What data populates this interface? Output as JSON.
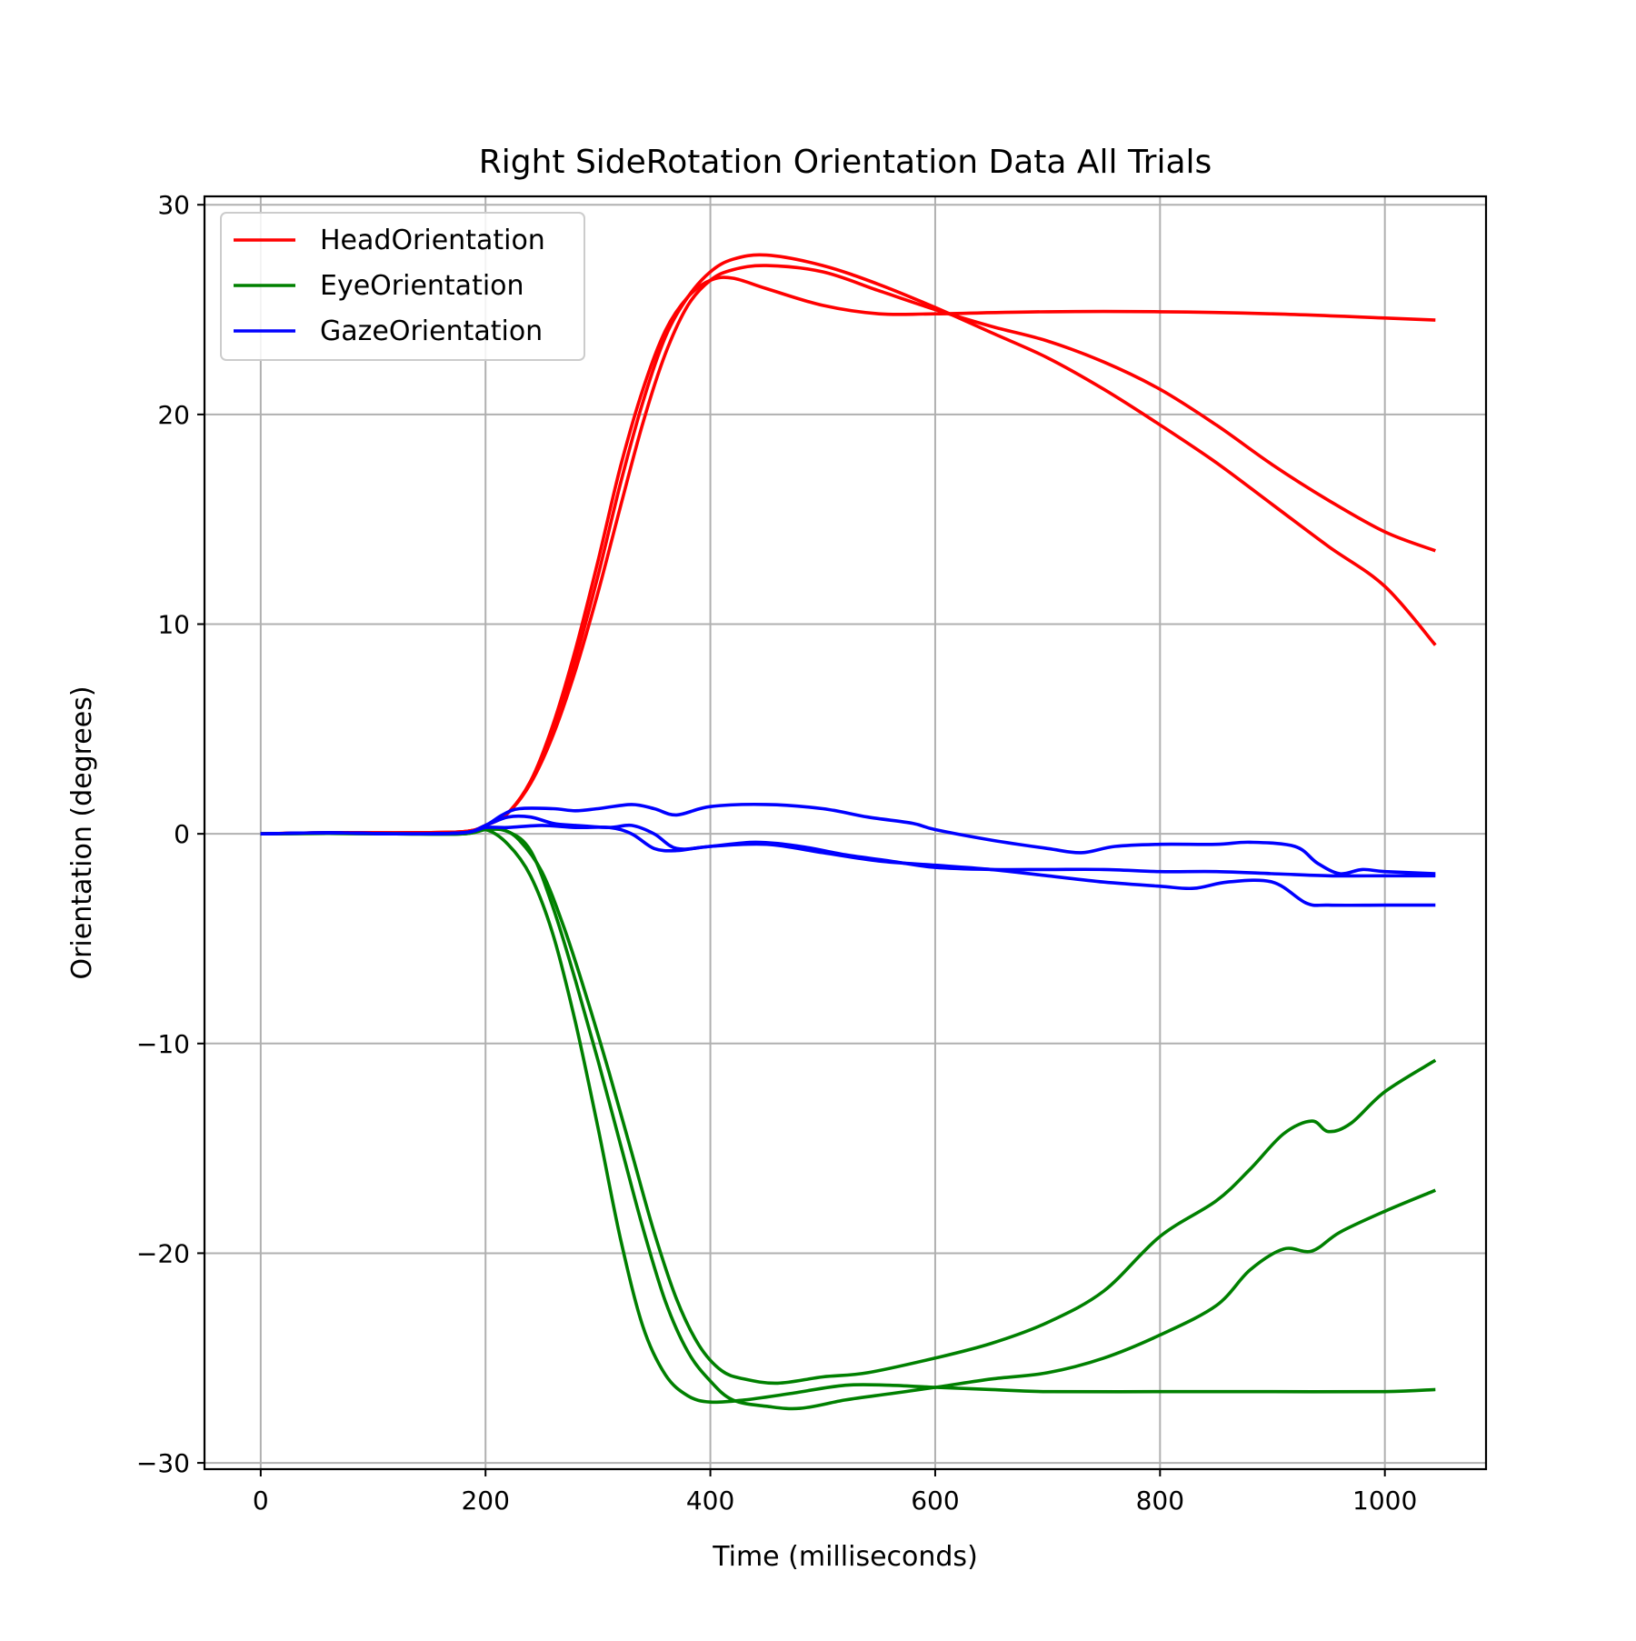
{
  "chart_data": {
    "type": "line",
    "title": "Right SideRotation Orientation Data All Trials",
    "xlabel": "Time (milliseconds)",
    "ylabel": "Orientation (degrees)",
    "xlim": [
      -50,
      1090
    ],
    "ylim": [
      -30.3,
      30.4
    ],
    "xticks": [
      0,
      200,
      400,
      600,
      800,
      1000
    ],
    "yticks": [
      30,
      20,
      10,
      0,
      -10,
      -20,
      -30
    ],
    "xtick_labels": [
      "0",
      "200",
      "400",
      "600",
      "800",
      "1000"
    ],
    "ytick_labels": [
      "30",
      "20",
      "10",
      "0",
      "−10",
      "−20",
      "−30"
    ],
    "grid": true,
    "legend_position": "top-left",
    "legend": [
      {
        "label": "HeadOrientation",
        "color": "#ff0000"
      },
      {
        "label": "EyeOrientation",
        "color": "#008000"
      },
      {
        "label": "GazeOrientation",
        "color": "#0000ff"
      }
    ],
    "series": [
      {
        "group": "HeadOrientation",
        "color": "#ff0000",
        "points": [
          [
            0,
            0
          ],
          [
            60,
            0.05
          ],
          [
            120,
            0.05
          ],
          [
            180,
            0.1
          ],
          [
            200,
            0.4
          ],
          [
            220,
            1.0
          ],
          [
            240,
            2.5
          ],
          [
            260,
            5.2
          ],
          [
            280,
            8.8
          ],
          [
            300,
            13.0
          ],
          [
            320,
            17.5
          ],
          [
            340,
            21.2
          ],
          [
            360,
            24.0
          ],
          [
            380,
            25.6
          ],
          [
            400,
            26.4
          ],
          [
            420,
            26.5
          ],
          [
            450,
            26.0
          ],
          [
            500,
            25.2
          ],
          [
            550,
            24.8
          ],
          [
            600,
            24.8
          ],
          [
            700,
            24.9
          ],
          [
            800,
            24.9
          ],
          [
            900,
            24.8
          ],
          [
            1000,
            24.6
          ],
          [
            1045,
            24.5
          ]
        ]
      },
      {
        "group": "HeadOrientation",
        "color": "#ff0000",
        "points": [
          [
            0,
            0
          ],
          [
            60,
            0.05
          ],
          [
            120,
            0.05
          ],
          [
            180,
            0.1
          ],
          [
            200,
            0.4
          ],
          [
            220,
            1.0
          ],
          [
            240,
            2.5
          ],
          [
            260,
            5.0
          ],
          [
            280,
            8.3
          ],
          [
            300,
            12.3
          ],
          [
            320,
            16.7
          ],
          [
            340,
            20.6
          ],
          [
            360,
            23.7
          ],
          [
            380,
            25.6
          ],
          [
            400,
            26.8
          ],
          [
            420,
            27.4
          ],
          [
            450,
            27.6
          ],
          [
            500,
            27.1
          ],
          [
            550,
            26.2
          ],
          [
            600,
            25.1
          ],
          [
            650,
            23.9
          ],
          [
            700,
            22.7
          ],
          [
            750,
            21.2
          ],
          [
            800,
            19.5
          ],
          [
            850,
            17.7
          ],
          [
            900,
            15.7
          ],
          [
            950,
            13.7
          ],
          [
            1000,
            11.8
          ],
          [
            1045,
            9.0
          ]
        ]
      },
      {
        "group": "HeadOrientation",
        "color": "#ff0000",
        "points": [
          [
            0,
            0
          ],
          [
            60,
            0.05
          ],
          [
            120,
            0.05
          ],
          [
            180,
            0.1
          ],
          [
            200,
            0.4
          ],
          [
            220,
            1.0
          ],
          [
            240,
            2.4
          ],
          [
            260,
            4.7
          ],
          [
            280,
            7.8
          ],
          [
            300,
            11.5
          ],
          [
            320,
            15.6
          ],
          [
            340,
            19.6
          ],
          [
            360,
            22.9
          ],
          [
            380,
            25.2
          ],
          [
            400,
            26.4
          ],
          [
            420,
            26.9
          ],
          [
            450,
            27.1
          ],
          [
            500,
            26.8
          ],
          [
            550,
            25.9
          ],
          [
            600,
            25.0
          ],
          [
            650,
            24.2
          ],
          [
            700,
            23.5
          ],
          [
            750,
            22.5
          ],
          [
            800,
            21.2
          ],
          [
            850,
            19.5
          ],
          [
            900,
            17.6
          ],
          [
            950,
            15.9
          ],
          [
            1000,
            14.4
          ],
          [
            1045,
            13.5
          ]
        ]
      },
      {
        "group": "EyeOrientation",
        "color": "#008000",
        "points": [
          [
            0,
            0
          ],
          [
            60,
            0.02
          ],
          [
            120,
            0
          ],
          [
            180,
            0
          ],
          [
            200,
            0.2
          ],
          [
            215,
            0.2
          ],
          [
            230,
            -0.3
          ],
          [
            250,
            -1.8
          ],
          [
            270,
            -4.5
          ],
          [
            290,
            -7.8
          ],
          [
            310,
            -11.4
          ],
          [
            330,
            -15.2
          ],
          [
            350,
            -19.0
          ],
          [
            370,
            -22.2
          ],
          [
            390,
            -24.4
          ],
          [
            410,
            -25.6
          ],
          [
            430,
            -26.0
          ],
          [
            460,
            -26.2
          ],
          [
            500,
            -25.9
          ],
          [
            540,
            -25.7
          ],
          [
            600,
            -25.0
          ],
          [
            650,
            -24.3
          ],
          [
            700,
            -23.3
          ],
          [
            750,
            -21.8
          ],
          [
            800,
            -19.2
          ],
          [
            850,
            -17.5
          ],
          [
            880,
            -16.0
          ],
          [
            910,
            -14.3
          ],
          [
            935,
            -13.7
          ],
          [
            950,
            -14.2
          ],
          [
            970,
            -13.8
          ],
          [
            1000,
            -12.3
          ],
          [
            1045,
            -10.8
          ]
        ]
      },
      {
        "group": "EyeOrientation",
        "color": "#008000",
        "points": [
          [
            0,
            0
          ],
          [
            60,
            0.02
          ],
          [
            120,
            0
          ],
          [
            180,
            0
          ],
          [
            200,
            0.2
          ],
          [
            220,
            0.1
          ],
          [
            240,
            -0.8
          ],
          [
            260,
            -3.5
          ],
          [
            280,
            -7.0
          ],
          [
            300,
            -10.8
          ],
          [
            320,
            -14.8
          ],
          [
            340,
            -18.8
          ],
          [
            360,
            -22.3
          ],
          [
            380,
            -24.7
          ],
          [
            400,
            -26.1
          ],
          [
            420,
            -27.0
          ],
          [
            450,
            -27.3
          ],
          [
            480,
            -27.4
          ],
          [
            520,
            -27.0
          ],
          [
            560,
            -26.7
          ],
          [
            600,
            -26.4
          ],
          [
            650,
            -26.0
          ],
          [
            700,
            -25.7
          ],
          [
            750,
            -25.0
          ],
          [
            800,
            -23.9
          ],
          [
            850,
            -22.5
          ],
          [
            880,
            -20.8
          ],
          [
            910,
            -19.8
          ],
          [
            935,
            -19.9
          ],
          [
            960,
            -19.0
          ],
          [
            1000,
            -18.0
          ],
          [
            1045,
            -17.0
          ]
        ]
      },
      {
        "group": "EyeOrientation",
        "color": "#008000",
        "points": [
          [
            0,
            0
          ],
          [
            60,
            0.02
          ],
          [
            120,
            0
          ],
          [
            180,
            0
          ],
          [
            200,
            0.2
          ],
          [
            220,
            -0.5
          ],
          [
            240,
            -2.0
          ],
          [
            260,
            -4.8
          ],
          [
            280,
            -9.0
          ],
          [
            300,
            -14.0
          ],
          [
            320,
            -19.3
          ],
          [
            340,
            -23.5
          ],
          [
            360,
            -25.8
          ],
          [
            380,
            -26.8
          ],
          [
            400,
            -27.1
          ],
          [
            430,
            -27.0
          ],
          [
            470,
            -26.7
          ],
          [
            520,
            -26.3
          ],
          [
            560,
            -26.3
          ],
          [
            600,
            -26.4
          ],
          [
            650,
            -26.5
          ],
          [
            700,
            -26.6
          ],
          [
            800,
            -26.6
          ],
          [
            900,
            -26.6
          ],
          [
            1000,
            -26.6
          ],
          [
            1045,
            -26.5
          ]
        ]
      },
      {
        "group": "GazeOrientation",
        "color": "#0000ff",
        "points": [
          [
            0,
            0
          ],
          [
            60,
            0.05
          ],
          [
            120,
            0
          ],
          [
            180,
            0.05
          ],
          [
            200,
            0.4
          ],
          [
            215,
            0.9
          ],
          [
            230,
            1.2
          ],
          [
            260,
            1.2
          ],
          [
            280,
            1.1
          ],
          [
            300,
            1.2
          ],
          [
            330,
            1.4
          ],
          [
            350,
            1.2
          ],
          [
            370,
            0.9
          ],
          [
            400,
            1.3
          ],
          [
            450,
            1.4
          ],
          [
            500,
            1.2
          ],
          [
            540,
            0.8
          ],
          [
            580,
            0.5
          ],
          [
            600,
            0.2
          ],
          [
            650,
            -0.3
          ],
          [
            700,
            -0.7
          ],
          [
            730,
            -0.9
          ],
          [
            760,
            -0.6
          ],
          [
            800,
            -0.5
          ],
          [
            850,
            -0.5
          ],
          [
            880,
            -0.4
          ],
          [
            920,
            -0.6
          ],
          [
            940,
            -1.4
          ],
          [
            960,
            -1.9
          ],
          [
            980,
            -1.7
          ],
          [
            1000,
            -1.8
          ],
          [
            1045,
            -1.9
          ]
        ]
      },
      {
        "group": "GazeOrientation",
        "color": "#0000ff",
        "points": [
          [
            0,
            0
          ],
          [
            60,
            0.05
          ],
          [
            120,
            0
          ],
          [
            180,
            0.05
          ],
          [
            200,
            0.4
          ],
          [
            220,
            0.8
          ],
          [
            240,
            0.8
          ],
          [
            260,
            0.5
          ],
          [
            280,
            0.4
          ],
          [
            310,
            0.3
          ],
          [
            330,
            0.4
          ],
          [
            350,
            0.0
          ],
          [
            370,
            -0.7
          ],
          [
            400,
            -0.6
          ],
          [
            440,
            -0.4
          ],
          [
            480,
            -0.6
          ],
          [
            520,
            -1.0
          ],
          [
            560,
            -1.3
          ],
          [
            600,
            -1.6
          ],
          [
            650,
            -1.7
          ],
          [
            700,
            -1.7
          ],
          [
            750,
            -1.7
          ],
          [
            800,
            -1.8
          ],
          [
            850,
            -1.8
          ],
          [
            900,
            -1.9
          ],
          [
            950,
            -2.0
          ],
          [
            1000,
            -2.0
          ],
          [
            1045,
            -2.0
          ]
        ]
      },
      {
        "group": "GazeOrientation",
        "color": "#0000ff",
        "points": [
          [
            0,
            0
          ],
          [
            60,
            0.05
          ],
          [
            120,
            0
          ],
          [
            180,
            0.05
          ],
          [
            200,
            0.3
          ],
          [
            220,
            0.3
          ],
          [
            250,
            0.4
          ],
          [
            280,
            0.3
          ],
          [
            310,
            0.3
          ],
          [
            330,
            0.0
          ],
          [
            350,
            -0.7
          ],
          [
            370,
            -0.8
          ],
          [
            400,
            -0.6
          ],
          [
            450,
            -0.5
          ],
          [
            500,
            -0.9
          ],
          [
            550,
            -1.3
          ],
          [
            600,
            -1.5
          ],
          [
            650,
            -1.7
          ],
          [
            700,
            -2.0
          ],
          [
            750,
            -2.3
          ],
          [
            800,
            -2.5
          ],
          [
            830,
            -2.6
          ],
          [
            860,
            -2.3
          ],
          [
            900,
            -2.3
          ],
          [
            930,
            -3.3
          ],
          [
            950,
            -3.4
          ],
          [
            1000,
            -3.4
          ],
          [
            1045,
            -3.4
          ]
        ]
      }
    ]
  }
}
